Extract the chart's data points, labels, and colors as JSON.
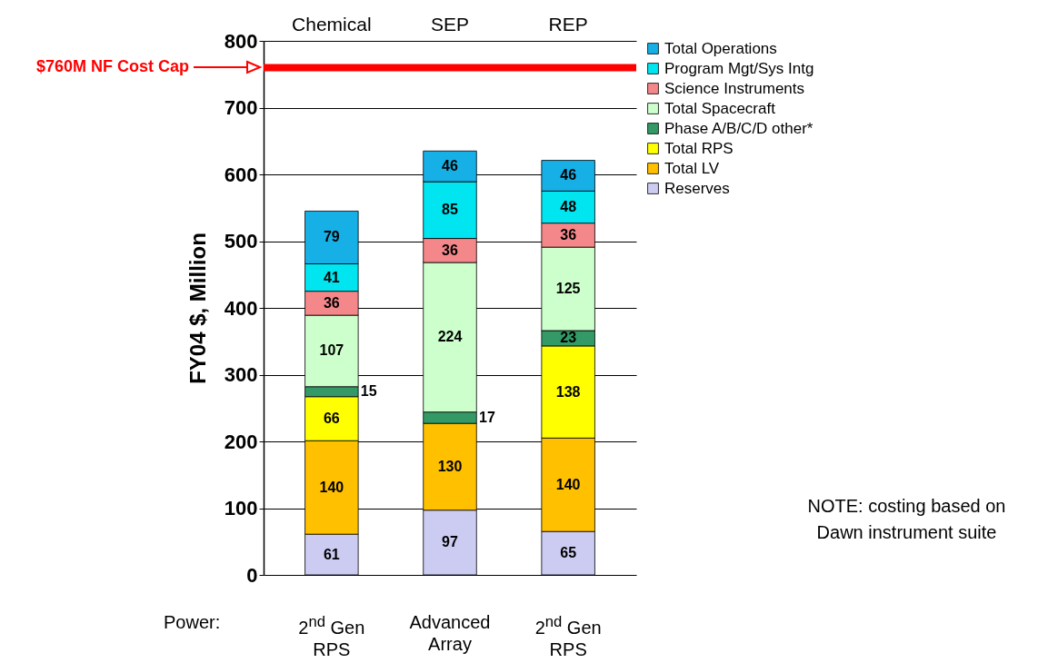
{
  "chart_data": {
    "type": "bar",
    "stacked": true,
    "categories": [
      "Chemical",
      "SEP",
      "REP"
    ],
    "ylabel": "FY04 $, Million",
    "ylim": [
      0,
      800
    ],
    "yticks": [
      0,
      100,
      200,
      300,
      400,
      500,
      600,
      700,
      800
    ],
    "grid": "y",
    "legend": "top right",
    "data_labels": true,
    "series": [
      {
        "name": "Reserves",
        "color": "#ccccf2",
        "values": [
          61,
          97,
          65
        ]
      },
      {
        "name": "Total LV",
        "color": "#ffc000",
        "values": [
          140,
          130,
          140
        ]
      },
      {
        "name": "Total RPS",
        "color": "#ffff00",
        "values": [
          66,
          null,
          138
        ]
      },
      {
        "name": "Phase A/B/C/D other*",
        "color": "#339966",
        "values": [
          15,
          17,
          23
        ]
      },
      {
        "name": "Total Spacecraft",
        "color": "#ccffcc",
        "values": [
          107,
          224,
          125
        ]
      },
      {
        "name": "Science Instruments",
        "color": "#f4878a",
        "values": [
          36,
          36,
          36
        ]
      },
      {
        "name": "Program Mgt/Sys Intg",
        "color": "#00e5f0",
        "values": [
          41,
          85,
          48
        ]
      },
      {
        "name": "Total Operations",
        "color": "#17b0e6",
        "values": [
          79,
          46,
          46
        ]
      }
    ],
    "ref_lines": [
      {
        "axis": "y",
        "value": 760,
        "label": "$760M NF Cost Cap",
        "color": "#ff0000"
      }
    ],
    "annotations": [
      "Power:",
      "2$^{nd}$ Gen RPS",
      "Advanced Array",
      "2$^{nd}$ Gen RPS",
      "NOTE: costing based on Dawn instrument suite"
    ]
  }
}
